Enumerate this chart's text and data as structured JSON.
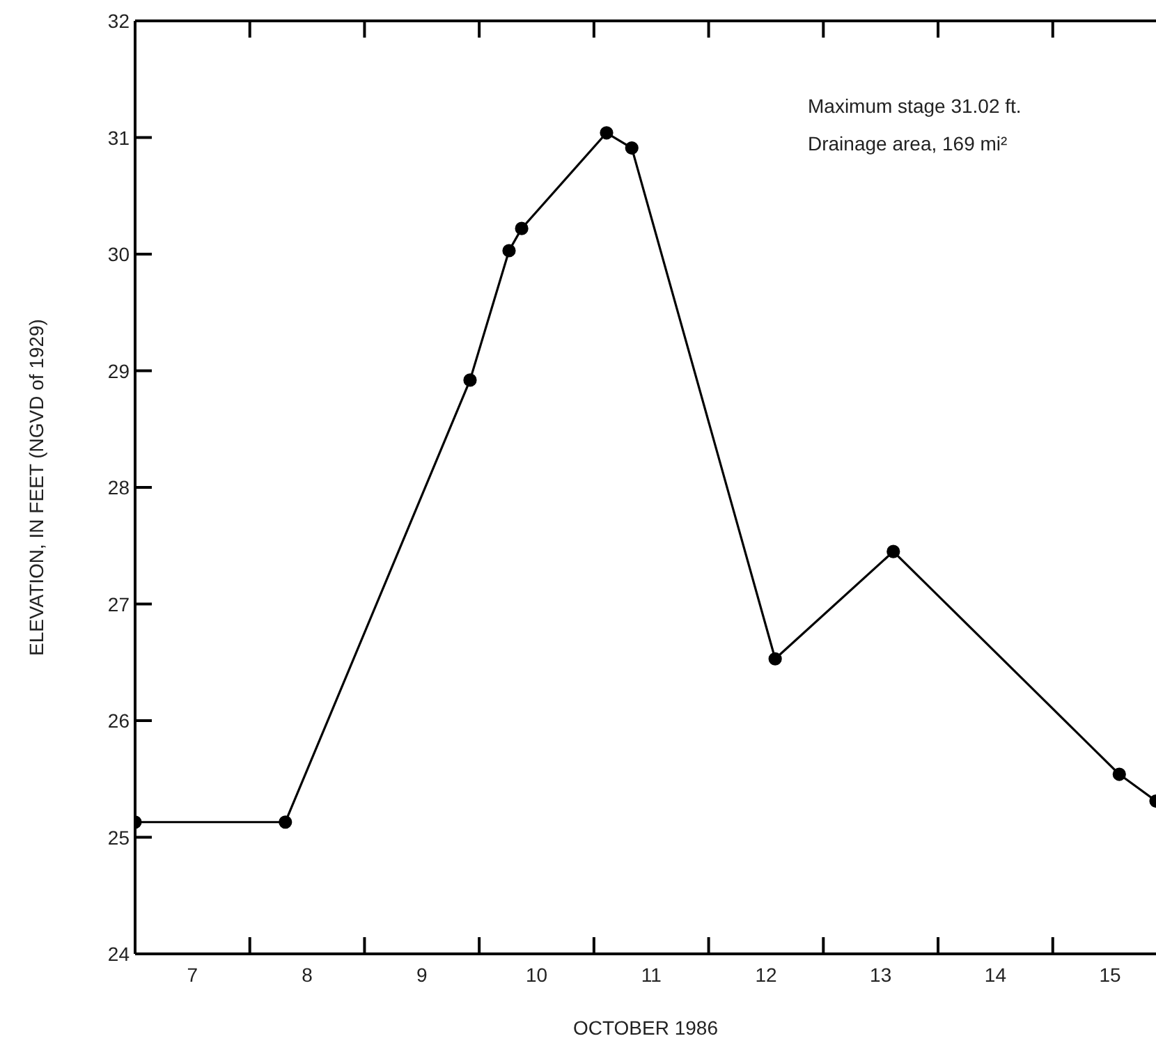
{
  "chart_data": {
    "type": "line",
    "xlabel": "OCTOBER 1986",
    "ylabel": "ELEVATION, IN FEET (NGVD of 1929)",
    "annotations": [
      "Maximum stage 31.02 ft.",
      "Drainage area, 169 mi²"
    ],
    "x": [
      7,
      8.31,
      9.92,
      10.26,
      10.37,
      11.11,
      11.33,
      12.58,
      13.61,
      15.58,
      15.9
    ],
    "series": [
      {
        "color": "#000000",
        "values": [
          25.13,
          25.13,
          28.92,
          30.03,
          30.22,
          31.04,
          30.91,
          26.53,
          27.45,
          25.54,
          25.31
        ]
      }
    ],
    "xlim": [
      7,
      15.9
    ],
    "xticks": [
      {
        "value": 7.5,
        "label": "7"
      },
      {
        "value": 8,
        "label": null
      },
      {
        "value": 8.5,
        "label": "8"
      },
      {
        "value": 9,
        "label": null
      },
      {
        "value": 9.5,
        "label": "9"
      },
      {
        "value": 10,
        "label": null
      },
      {
        "value": 10.5,
        "label": "10"
      },
      {
        "value": 11,
        "label": null
      },
      {
        "value": 11.5,
        "label": "11"
      },
      {
        "value": 12,
        "label": null
      },
      {
        "value": 12.5,
        "label": "12"
      },
      {
        "value": 13,
        "label": null
      },
      {
        "value": 13.5,
        "label": "13"
      },
      {
        "value": 14,
        "label": null
      },
      {
        "value": 14.5,
        "label": "14"
      },
      {
        "value": 15,
        "label": null
      },
      {
        "value": 15.5,
        "label": "15"
      }
    ],
    "ylim": [
      24,
      32
    ],
    "yticks": [
      24,
      25,
      26,
      27,
      28,
      29,
      30,
      31,
      32
    ],
    "marker": "circle",
    "line_style": "solid"
  }
}
